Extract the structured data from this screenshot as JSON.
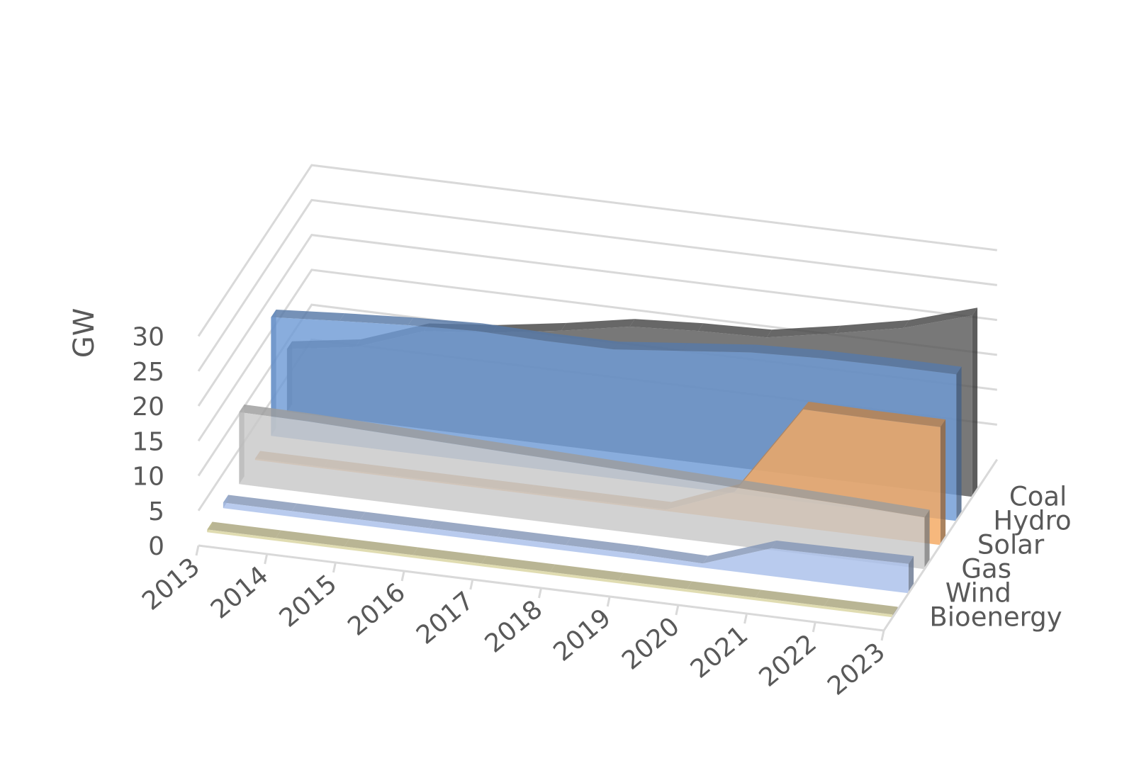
{
  "chart_data": {
    "type": "area",
    "subtype": "3d-area",
    "title": "",
    "xlabel": "",
    "ylabel": "GW",
    "ylim": [
      0,
      30
    ],
    "yticks": [
      "0",
      "5",
      "10",
      "15",
      "20",
      "25",
      "30"
    ],
    "categories": [
      "2013",
      "2014",
      "2015",
      "2016",
      "2017",
      "2018",
      "2019",
      "2020",
      "2021",
      "2022",
      "2023"
    ],
    "grid": true,
    "legend": "depth-axis",
    "series": [
      {
        "name": "Bioenergy",
        "color": "#d9d4a0",
        "values": [
          0.4,
          0.4,
          0.4,
          0.4,
          0.4,
          0.4,
          0.4,
          0.4,
          0.4,
          0.4,
          0.4
        ]
      },
      {
        "name": "Wind",
        "color": "#a9c0ea",
        "values": [
          0.8,
          0.8,
          0.8,
          0.8,
          0.8,
          0.8,
          0.8,
          0.6,
          4.0,
          4.1,
          4.2
        ]
      },
      {
        "name": "Gas",
        "color": "#c8c8c8",
        "values": [
          10.3,
          10.2,
          9.9,
          9.6,
          9.3,
          9.0,
          8.7,
          8.4,
          8.1,
          7.8,
          7.4
        ]
      },
      {
        "name": "Solar",
        "color": "#f4a860",
        "values": [
          0.2,
          0.2,
          0.2,
          0.2,
          0.2,
          0.2,
          0.2,
          4.0,
          17.0,
          16.9,
          16.9
        ]
      },
      {
        "name": "Hydro",
        "color": "#6f9bd6",
        "values": [
          17.0,
          17.7,
          18.3,
          18.7,
          18.5,
          18.5,
          19.5,
          20.5,
          20.9,
          21.0,
          21.0
        ]
      },
      {
        "name": "Coal",
        "color": "#5a5a5a",
        "values": [
          9.0,
          10.5,
          14.0,
          15.0,
          16.5,
          18.3,
          18.9,
          19.2,
          21.0,
          23.0,
          26.0
        ]
      }
    ]
  }
}
